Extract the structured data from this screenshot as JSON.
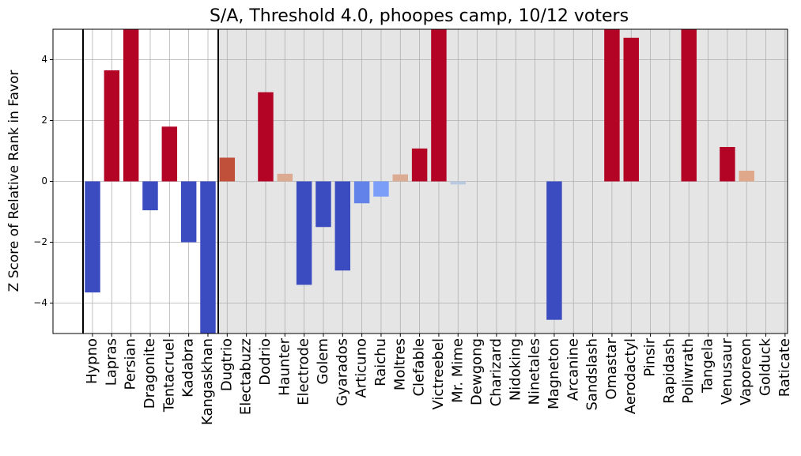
{
  "chart_data": {
    "type": "bar",
    "title": "S/A, Threshold 4.0, phoopes camp, 10/12 voters",
    "y_label": "Z Score of Relative Rank in Favor",
    "categories": [
      "Hypno",
      "Lapras",
      "Persian",
      "Dragonite",
      "Tentacruel",
      "Kadabra",
      "Kangaskhan",
      "Dugtrio",
      "Electabuzz",
      "Dodrio",
      "Haunter",
      "Electrode",
      "Golem",
      "Gyarados",
      "Articuno",
      "Raichu",
      "Moltres",
      "Clefable",
      "Victreebel",
      "Mr. Mime",
      "Dewgong",
      "Charizard",
      "Nidoking",
      "Ninetales",
      "Magneton",
      "Arcanine",
      "Sandslash",
      "Omastar",
      "Aerodactyl",
      "Pinsir",
      "Rapidash",
      "Poliwrath",
      "Tangela",
      "Venusaur",
      "Vaporeon",
      "Golduck",
      "Raticate"
    ],
    "values": [
      -3.65,
      3.65,
      5,
      -0.95,
      1.8,
      -2.0,
      -5,
      0.78,
      -0.03,
      2.93,
      0.25,
      -3.4,
      -1.5,
      -2.93,
      -0.72,
      -0.5,
      0.23,
      1.08,
      5,
      -0.1,
      0,
      0,
      0,
      0,
      -4.55,
      0,
      0,
      5,
      4.72,
      0,
      0,
      5,
      0,
      1.13,
      0.35,
      0,
      0
    ],
    "colors": [
      "#3b4cc0",
      "#b40426",
      "#b40426",
      "#3b4cc0",
      "#b40426",
      "#3b4cc0",
      "#3b4cc0",
      "#c0503a",
      "#d0d0d0",
      "#b40426",
      "#dcaa90",
      "#3b4cc0",
      "#3b4cc0",
      "#3b4cc0",
      "#6282ea",
      "#7b9ff9",
      "#dcab93",
      "#b40426",
      "#b40426",
      "#b9c9e0",
      "#dddcdc",
      "#dddcdc",
      "#dddcdc",
      "#dddcdc",
      "#3b4cc0",
      "#dddcdc",
      "#dddcdc",
      "#b40426",
      "#b40426",
      "#dddcdc",
      "#dddcdc",
      "#b40426",
      "#dddcdc",
      "#b40426",
      "#e0a88b",
      "#dddcdc",
      "#dddcdc"
    ],
    "ylim": [
      -5,
      5
    ],
    "yticks": [
      {
        "value": -4,
        "label": "−4"
      },
      {
        "value": -2,
        "label": "−2"
      },
      0,
      2,
      4
    ],
    "grid": true
  }
}
